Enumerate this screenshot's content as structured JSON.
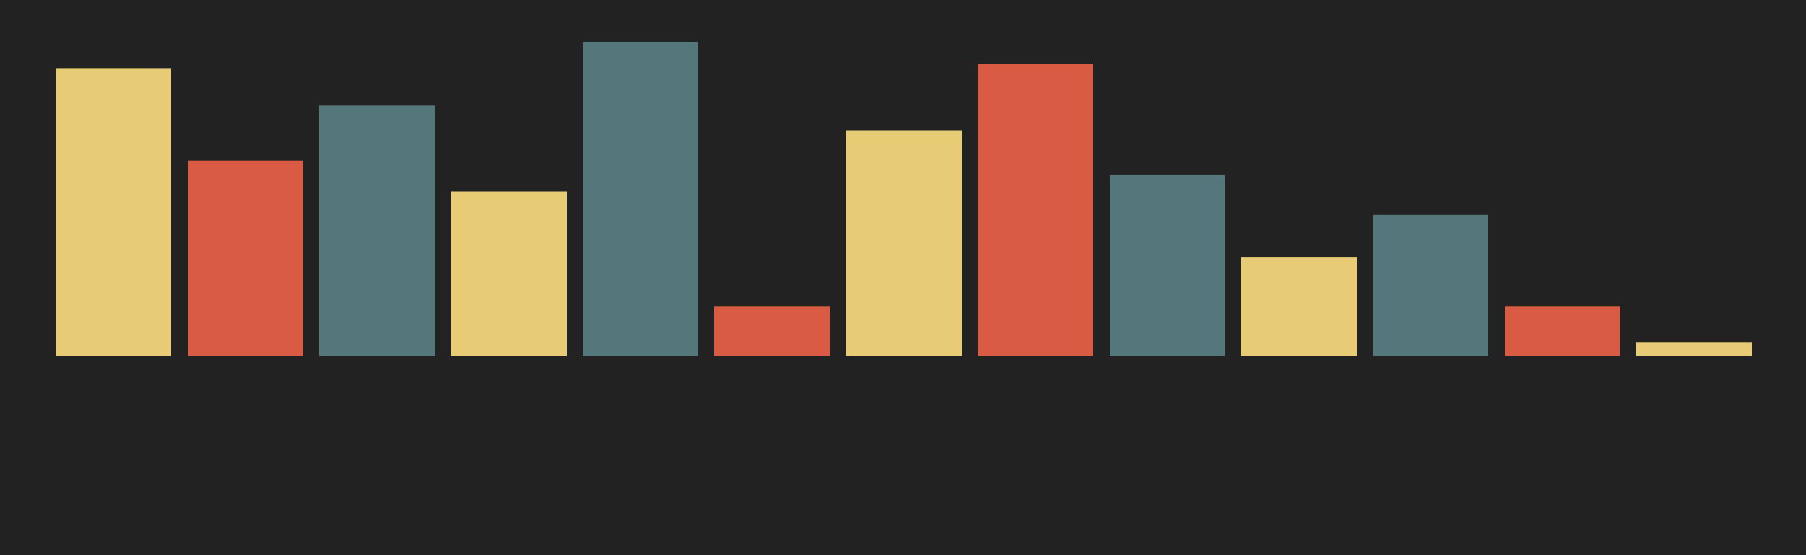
{
  "chart_data": {
    "type": "bar",
    "title": "",
    "xlabel": "",
    "ylabel": "",
    "ylim": [
      0,
      100
    ],
    "grid": false,
    "legend": "none",
    "background": "#222222",
    "categories": [
      "",
      "",
      "",
      "",
      "",
      "",
      "",
      "",
      "",
      "",
      "",
      "",
      ""
    ],
    "values": [
      71.6,
      48.6,
      62.4,
      41.0,
      78.2,
      12.3,
      56.3,
      72.8,
      45.2,
      24.7,
      35.1,
      12.3,
      3.3
    ],
    "colors": [
      "#E8CC75",
      "#D95B43",
      "#53777A",
      "#E8CC75",
      "#53777A",
      "#D95B43",
      "#E8CC75",
      "#D95B43",
      "#53777A",
      "#E8CC75",
      "#53777A",
      "#D95B43",
      "#E8CC75"
    ]
  }
}
